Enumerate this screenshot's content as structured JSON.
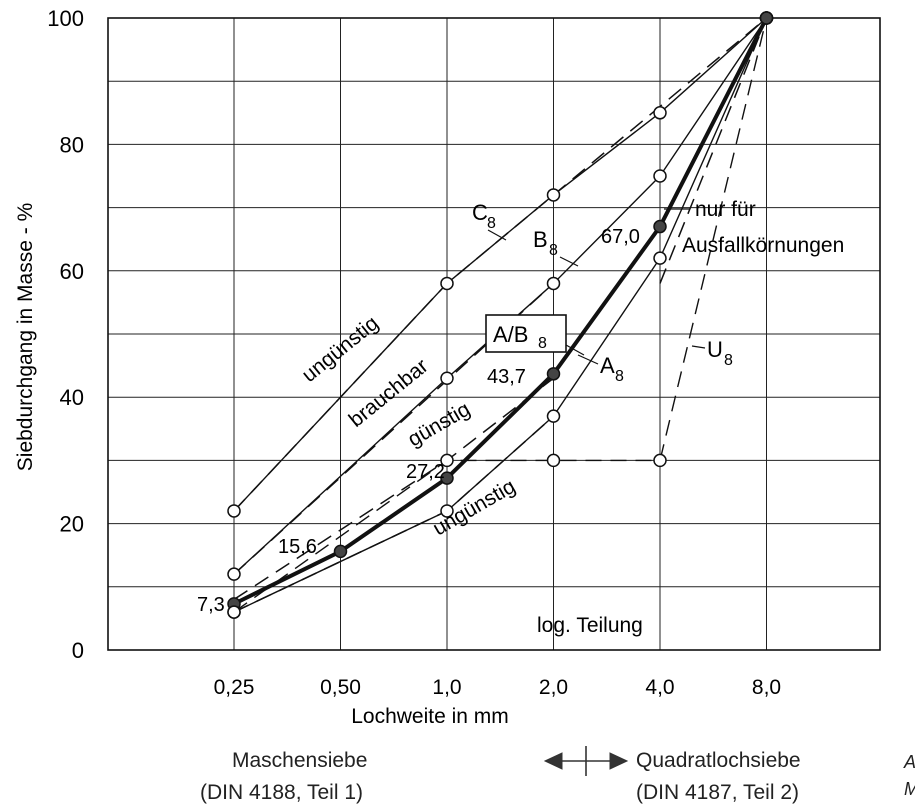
{
  "chart_data": {
    "type": "line",
    "xlabel": "Lochweite in mm",
    "ylabel": "Siebdurchgang in Masse - %",
    "categories": [
      "0,25",
      "0,50",
      "1,0",
      "2,0",
      "4,0",
      "8,0"
    ],
    "x_scale": "log",
    "ylim": [
      0,
      100
    ],
    "yticks": [
      0,
      20,
      40,
      60,
      80,
      100
    ],
    "grid": true,
    "series": [
      {
        "name": "C8",
        "style": "thin solid, open markers",
        "x": [
          0.25,
          1.0,
          2.0,
          4.0,
          8.0
        ],
        "values": [
          22,
          58,
          72,
          85,
          100
        ]
      },
      {
        "name": "B8",
        "style": "thin solid, open markers",
        "x": [
          0.25,
          1.0,
          2.0,
          4.0,
          8.0
        ],
        "values": [
          12,
          43,
          58,
          75,
          100
        ]
      },
      {
        "name": "A/B8",
        "style": "thick solid, filled markers",
        "x": [
          0.25,
          0.5,
          1.0,
          2.0,
          4.0,
          8.0
        ],
        "values": [
          7.3,
          15.6,
          27.2,
          43.7,
          67.0,
          100
        ]
      },
      {
        "name": "A8",
        "style": "thin solid, open markers",
        "x": [
          0.25,
          1.0,
          2.0,
          4.0,
          8.0
        ],
        "values": [
          6,
          22,
          37,
          62,
          100
        ]
      },
      {
        "name": "U8",
        "style": "dashed, open markers",
        "x": [
          0.25,
          1.0,
          2.0,
          4.0,
          8.0
        ],
        "values": [
          6,
          30,
          30,
          30,
          100
        ]
      }
    ],
    "boundary_dashed_lines": [
      {
        "x": [
          0.25,
          1.0,
          8.0
        ],
        "values": [
          22,
          58,
          100
        ]
      },
      {
        "x": [
          0.25,
          2.0
        ],
        "values": [
          12,
          58
        ]
      },
      {
        "x": [
          0.25,
          1.0,
          2.0
        ],
        "values": [
          8,
          30,
          43
        ]
      },
      {
        "x": [
          0.25,
          1.0,
          2.0
        ],
        "values": [
          6,
          22,
          37
        ]
      },
      {
        "x": [
          4.0,
          8.0
        ],
        "values": [
          58,
          100
        ]
      }
    ],
    "value_labels": [
      "7,3",
      "15,6",
      "27,2",
      "43,7",
      "67,0"
    ],
    "annotations": {
      "nur_fuer_line1": "nur für",
      "nur_fuer_line2": "Ausfallkörnungen",
      "unguenstig_upper": "ungünstig",
      "brauchbar": "brauchbar",
      "guenstig": "günstig",
      "unguenstig_lower": "ungünstig",
      "log_teilung": "log. Teilung"
    }
  },
  "footer": {
    "left_line1": "Maschensiebe",
    "left_line2": "(DIN 4188, Teil 1)",
    "right_line1": "Quadratlochsiebe",
    "right_line2": "(DIN 4187, Teil 2)",
    "edge_fragment_1": "A",
    "edge_fragment_2": "M"
  }
}
